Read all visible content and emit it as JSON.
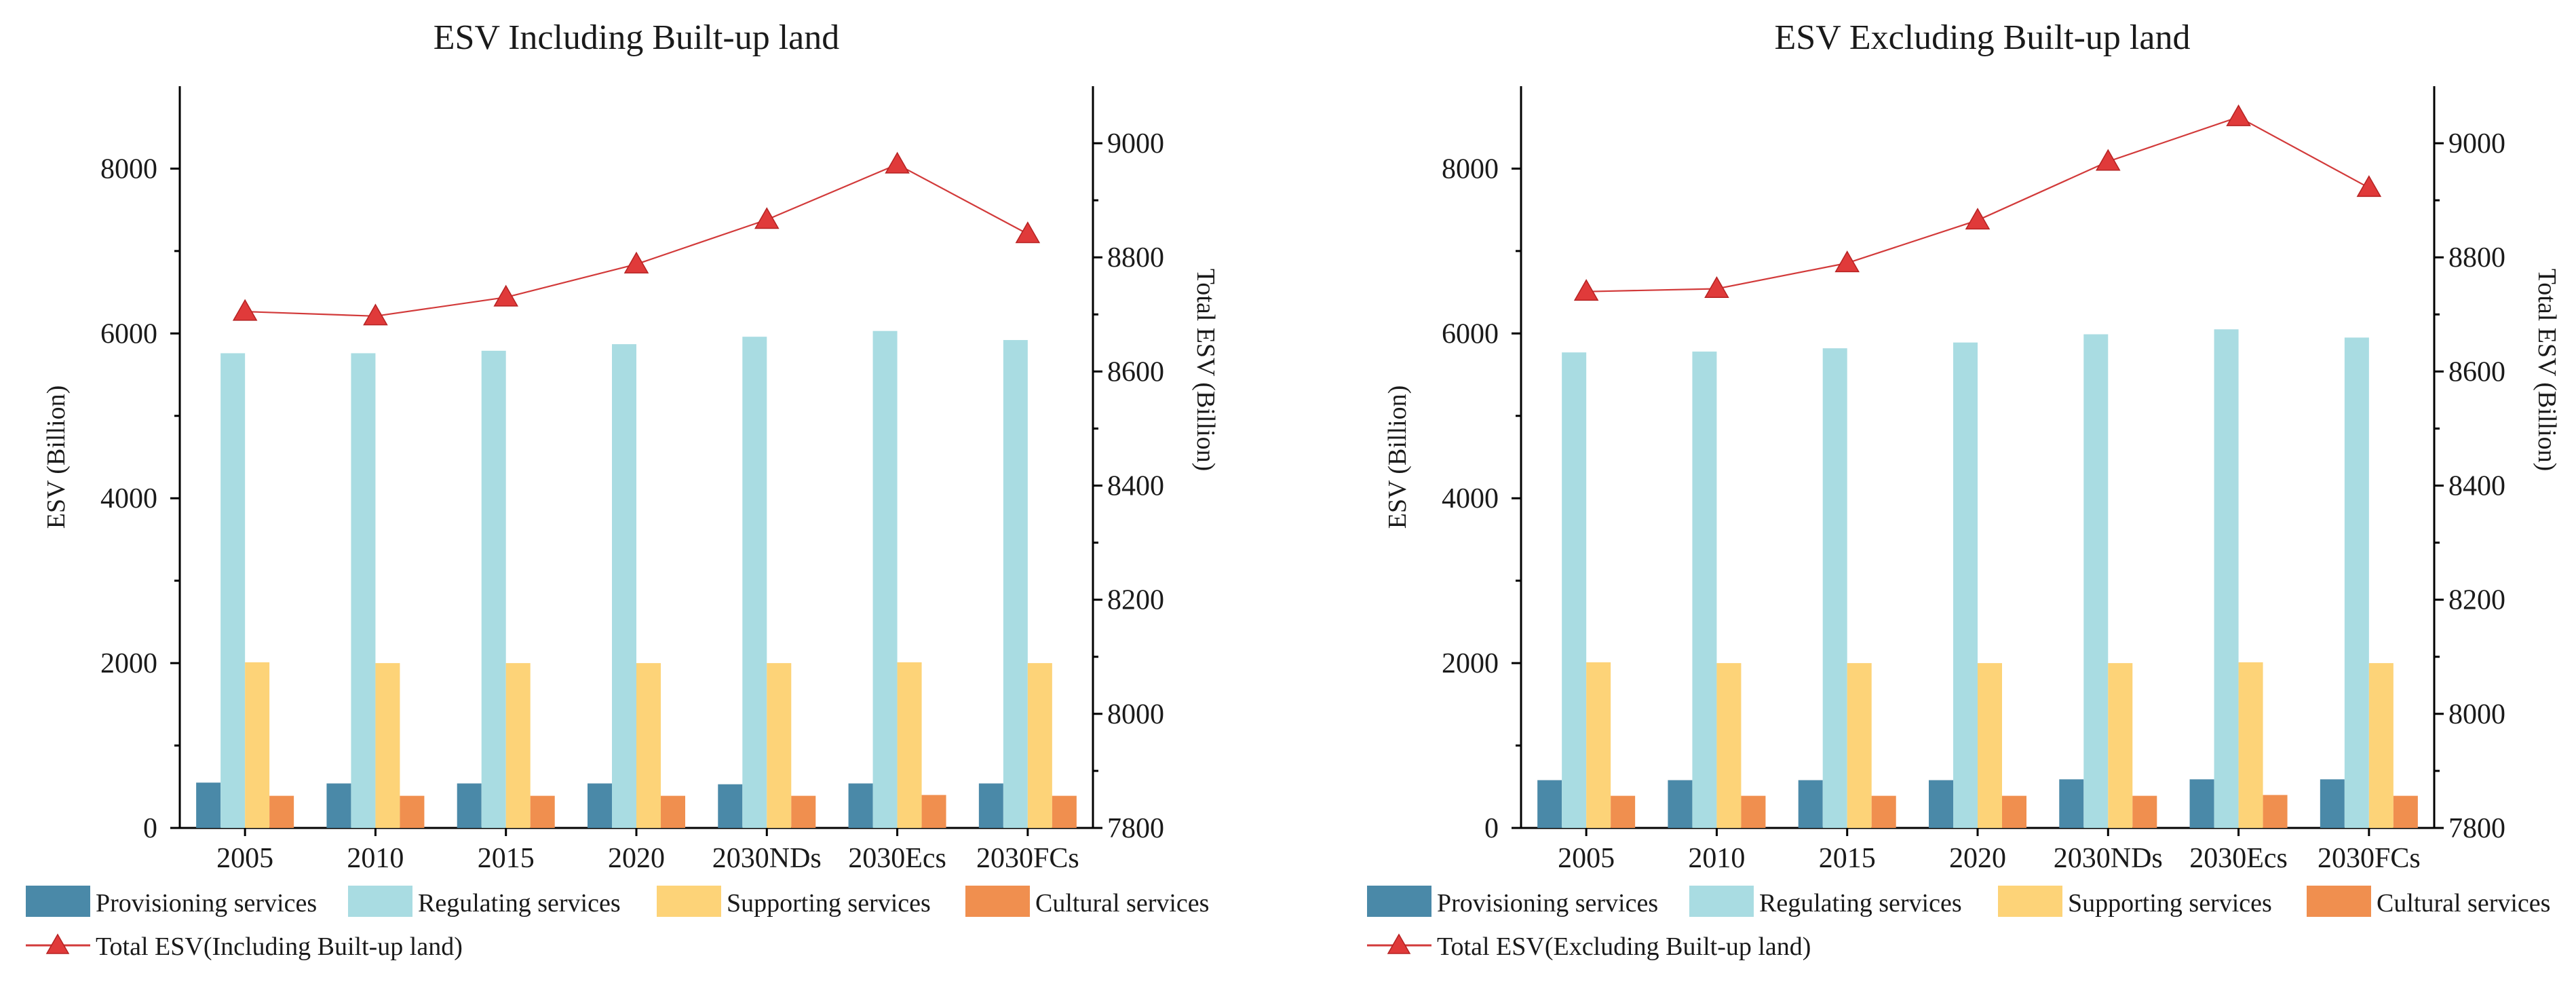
{
  "colors": {
    "provisioning": "#4a89a8",
    "regulating": "#a9dce2",
    "supporting": "#fdd378",
    "cultural": "#f08f4f",
    "total_line": "#d23a3a",
    "total_marker": "#e03a3a"
  },
  "chart_data": [
    {
      "type": "bar",
      "title": "ESV Including Built-up land",
      "categories": [
        "2005",
        "2010",
        "2015",
        "2020",
        "2030NDs",
        "2030Ecs",
        "2030FCs"
      ],
      "ylabel": "ESV (Billion)",
      "ylim": [
        0,
        9000
      ],
      "yticks": [
        "0",
        "2000",
        "4000",
        "6000",
        "8000"
      ],
      "y2label": "Total ESV (Billion)",
      "y2lim": [
        7800,
        9100
      ],
      "y2ticks": [
        "7800",
        "8000",
        "8200",
        "8400",
        "8600",
        "8800",
        "9000"
      ],
      "series": [
        {
          "name": "Provisioning services",
          "key": "provisioning",
          "values": [
            550,
            540,
            540,
            540,
            530,
            540,
            540
          ]
        },
        {
          "name": "Regulating services",
          "key": "regulating",
          "values": [
            5760,
            5760,
            5790,
            5870,
            5960,
            6030,
            5920
          ]
        },
        {
          "name": "Supporting services",
          "key": "supporting",
          "values": [
            2010,
            2000,
            2000,
            2000,
            2000,
            2010,
            2000
          ]
        },
        {
          "name": "Cultural services",
          "key": "cultural",
          "values": [
            390,
            390,
            390,
            390,
            390,
            400,
            390
          ]
        }
      ],
      "line_series": {
        "name": "Total ESV(Including Built-up land)",
        "axis": "right",
        "values": [
          8705,
          8697,
          8730,
          8788,
          8866,
          8963,
          8841
        ]
      }
    },
    {
      "type": "bar",
      "title": "ESV Excluding Built-up land",
      "categories": [
        "2005",
        "2010",
        "2015",
        "2020",
        "2030NDs",
        "2030Ecs",
        "2030FCs"
      ],
      "ylabel": "ESV (Billion)",
      "ylim": [
        0,
        9000
      ],
      "yticks": [
        "0",
        "2000",
        "4000",
        "6000",
        "8000"
      ],
      "y2label": "Total ESV (Billion)",
      "y2lim": [
        7800,
        9100
      ],
      "y2ticks": [
        "7800",
        "8000",
        "8200",
        "8400",
        "8600",
        "8800",
        "9000"
      ],
      "series": [
        {
          "name": "Provisioning services",
          "key": "provisioning",
          "values": [
            580,
            580,
            580,
            580,
            590,
            590,
            590
          ]
        },
        {
          "name": "Regulating services",
          "key": "regulating",
          "values": [
            5770,
            5780,
            5820,
            5890,
            5990,
            6050,
            5950
          ]
        },
        {
          "name": "Supporting services",
          "key": "supporting",
          "values": [
            2010,
            2000,
            2000,
            2000,
            2000,
            2010,
            2000
          ]
        },
        {
          "name": "Cultural services",
          "key": "cultural",
          "values": [
            390,
            390,
            390,
            390,
            390,
            400,
            390
          ]
        }
      ],
      "line_series": {
        "name": "Total ESV(Excluding Built-up land)",
        "axis": "right",
        "values": [
          8740,
          8745,
          8790,
          8865,
          8968,
          9046,
          8922
        ]
      }
    }
  ]
}
